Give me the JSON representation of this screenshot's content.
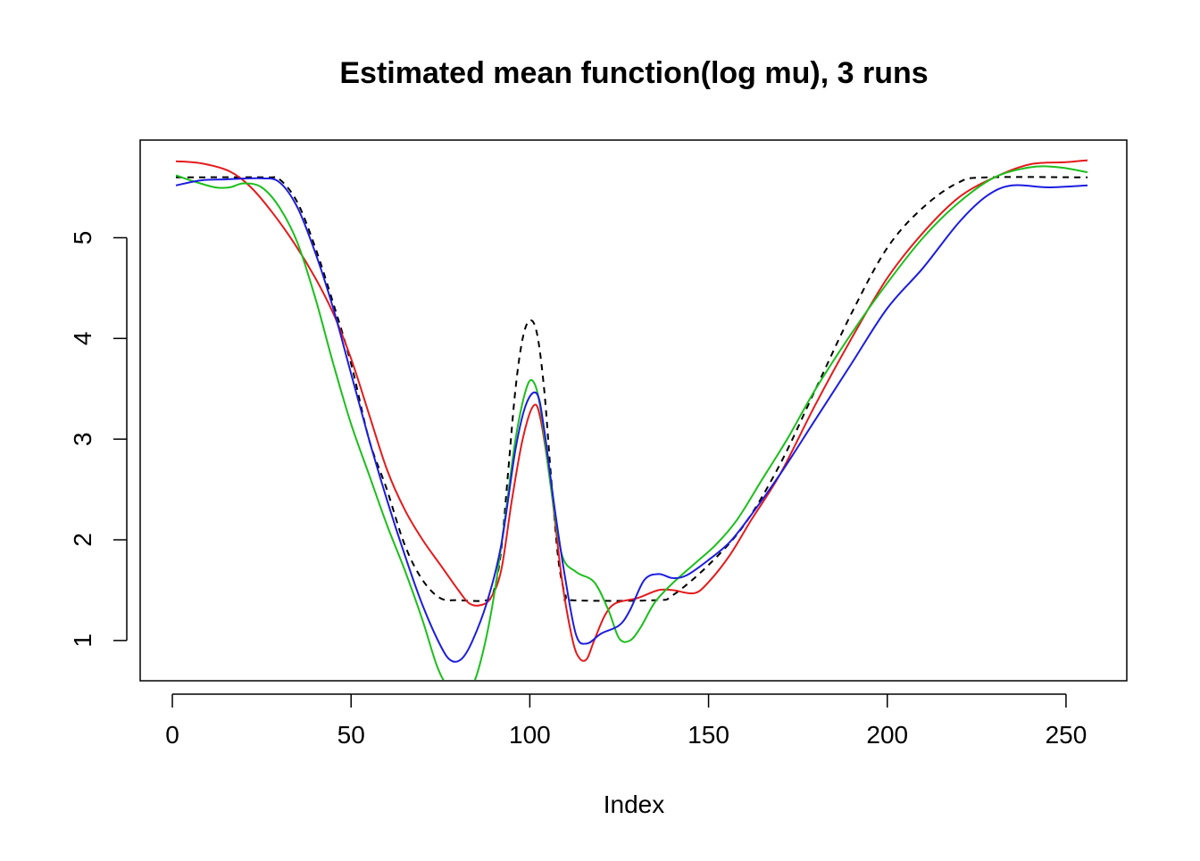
{
  "chart_data": {
    "type": "line",
    "title": "Estimated mean function(log mu), 3 runs",
    "xlabel": "Index",
    "ylabel": "",
    "xlim": [
      -9,
      267
    ],
    "ylim": [
      0.6,
      5.97
    ],
    "x_ticks": [
      "0",
      "50",
      "100",
      "150",
      "200",
      "250"
    ],
    "y_ticks": [
      "1",
      "2",
      "3",
      "4",
      "5"
    ],
    "grid": false,
    "legend": "none",
    "series": [
      {
        "color": "#000000",
        "dash": "dashed",
        "points": [
          [
            1,
            5.6
          ],
          [
            26,
            5.6
          ],
          [
            30,
            5.58
          ],
          [
            35,
            5.35
          ],
          [
            40,
            4.9
          ],
          [
            45,
            4.35
          ],
          [
            50,
            3.75
          ],
          [
            55,
            3.0
          ],
          [
            60,
            2.5
          ],
          [
            65,
            1.95
          ],
          [
            70,
            1.6
          ],
          [
            75,
            1.42
          ],
          [
            80,
            1.4
          ],
          [
            88,
            1.4
          ],
          [
            90,
            1.5
          ],
          [
            92,
            1.9
          ],
          [
            94,
            2.7
          ],
          [
            96,
            3.5
          ],
          [
            98,
            4.0
          ],
          [
            100,
            4.18
          ],
          [
            102,
            4.05
          ],
          [
            104,
            3.5
          ],
          [
            106,
            2.6
          ],
          [
            108,
            1.8
          ],
          [
            110,
            1.45
          ],
          [
            112,
            1.4
          ],
          [
            135,
            1.4
          ],
          [
            140,
            1.45
          ],
          [
            150,
            1.75
          ],
          [
            160,
            2.15
          ],
          [
            170,
            2.75
          ],
          [
            180,
            3.5
          ],
          [
            190,
            4.25
          ],
          [
            200,
            4.9
          ],
          [
            210,
            5.3
          ],
          [
            220,
            5.55
          ],
          [
            228,
            5.6
          ],
          [
            256,
            5.6
          ]
        ]
      },
      {
        "color": "#e41a1c",
        "dash": "solid",
        "points": [
          [
            1,
            5.76
          ],
          [
            8,
            5.74
          ],
          [
            16,
            5.66
          ],
          [
            22,
            5.5
          ],
          [
            28,
            5.25
          ],
          [
            34,
            4.95
          ],
          [
            40,
            4.6
          ],
          [
            45,
            4.25
          ],
          [
            50,
            3.8
          ],
          [
            55,
            3.25
          ],
          [
            60,
            2.7
          ],
          [
            65,
            2.3
          ],
          [
            70,
            2.0
          ],
          [
            75,
            1.75
          ],
          [
            80,
            1.5
          ],
          [
            83,
            1.37
          ],
          [
            86,
            1.35
          ],
          [
            89,
            1.42
          ],
          [
            92,
            1.7
          ],
          [
            95,
            2.4
          ],
          [
            98,
            3.0
          ],
          [
            101,
            3.33
          ],
          [
            103,
            3.2
          ],
          [
            106,
            2.5
          ],
          [
            109,
            1.6
          ],
          [
            112,
            1.0
          ],
          [
            114,
            0.82
          ],
          [
            116,
            0.82
          ],
          [
            118,
            1.0
          ],
          [
            121,
            1.25
          ],
          [
            124,
            1.37
          ],
          [
            130,
            1.42
          ],
          [
            136,
            1.5
          ],
          [
            140,
            1.5
          ],
          [
            146,
            1.47
          ],
          [
            150,
            1.58
          ],
          [
            156,
            1.85
          ],
          [
            162,
            2.2
          ],
          [
            170,
            2.65
          ],
          [
            180,
            3.35
          ],
          [
            190,
            4.0
          ],
          [
            200,
            4.6
          ],
          [
            210,
            5.05
          ],
          [
            220,
            5.4
          ],
          [
            230,
            5.6
          ],
          [
            240,
            5.73
          ],
          [
            250,
            5.75
          ],
          [
            256,
            5.77
          ]
        ]
      },
      {
        "color": "#1cbf1c",
        "dash": "solid",
        "points": [
          [
            1,
            5.62
          ],
          [
            6,
            5.56
          ],
          [
            12,
            5.5
          ],
          [
            16,
            5.5
          ],
          [
            20,
            5.54
          ],
          [
            25,
            5.5
          ],
          [
            30,
            5.3
          ],
          [
            35,
            4.95
          ],
          [
            40,
            4.4
          ],
          [
            45,
            3.75
          ],
          [
            50,
            3.15
          ],
          [
            55,
            2.65
          ],
          [
            60,
            2.15
          ],
          [
            65,
            1.7
          ],
          [
            70,
            1.2
          ],
          [
            74,
            0.75
          ],
          [
            77,
            0.55
          ],
          [
            81,
            0.45
          ],
          [
            84,
            0.55
          ],
          [
            87,
            0.9
          ],
          [
            90,
            1.45
          ],
          [
            93,
            2.2
          ],
          [
            96,
            3.0
          ],
          [
            99,
            3.5
          ],
          [
            101,
            3.57
          ],
          [
            103,
            3.3
          ],
          [
            106,
            2.5
          ],
          [
            109,
            1.85
          ],
          [
            113,
            1.68
          ],
          [
            118,
            1.58
          ],
          [
            122,
            1.3
          ],
          [
            125,
            1.02
          ],
          [
            128,
            1.0
          ],
          [
            131,
            1.13
          ],
          [
            135,
            1.38
          ],
          [
            140,
            1.57
          ],
          [
            146,
            1.76
          ],
          [
            152,
            1.95
          ],
          [
            158,
            2.2
          ],
          [
            165,
            2.6
          ],
          [
            172,
            3.0
          ],
          [
            180,
            3.5
          ],
          [
            190,
            4.05
          ],
          [
            200,
            4.55
          ],
          [
            210,
            5.0
          ],
          [
            220,
            5.35
          ],
          [
            230,
            5.6
          ],
          [
            240,
            5.7
          ],
          [
            248,
            5.7
          ],
          [
            256,
            5.65
          ]
        ]
      },
      {
        "color": "#1c1ce0",
        "dash": "solid",
        "points": [
          [
            1,
            5.52
          ],
          [
            8,
            5.57
          ],
          [
            15,
            5.58
          ],
          [
            25,
            5.59
          ],
          [
            30,
            5.55
          ],
          [
            35,
            5.3
          ],
          [
            40,
            4.85
          ],
          [
            45,
            4.3
          ],
          [
            50,
            3.65
          ],
          [
            55,
            3.0
          ],
          [
            60,
            2.4
          ],
          [
            65,
            1.85
          ],
          [
            70,
            1.35
          ],
          [
            75,
            0.95
          ],
          [
            78,
            0.8
          ],
          [
            81,
            0.82
          ],
          [
            84,
            1.0
          ],
          [
            88,
            1.38
          ],
          [
            92,
            1.95
          ],
          [
            96,
            2.9
          ],
          [
            99,
            3.35
          ],
          [
            102,
            3.45
          ],
          [
            104,
            3.1
          ],
          [
            107,
            2.3
          ],
          [
            110,
            1.6
          ],
          [
            113,
            1.05
          ],
          [
            116,
            0.97
          ],
          [
            120,
            1.07
          ],
          [
            125,
            1.15
          ],
          [
            128,
            1.3
          ],
          [
            132,
            1.6
          ],
          [
            136,
            1.66
          ],
          [
            140,
            1.62
          ],
          [
            144,
            1.65
          ],
          [
            150,
            1.8
          ],
          [
            156,
            1.98
          ],
          [
            162,
            2.25
          ],
          [
            170,
            2.65
          ],
          [
            180,
            3.2
          ],
          [
            190,
            3.75
          ],
          [
            200,
            4.3
          ],
          [
            210,
            4.7
          ],
          [
            220,
            5.15
          ],
          [
            228,
            5.42
          ],
          [
            235,
            5.52
          ],
          [
            245,
            5.5
          ],
          [
            256,
            5.52
          ]
        ]
      }
    ]
  }
}
